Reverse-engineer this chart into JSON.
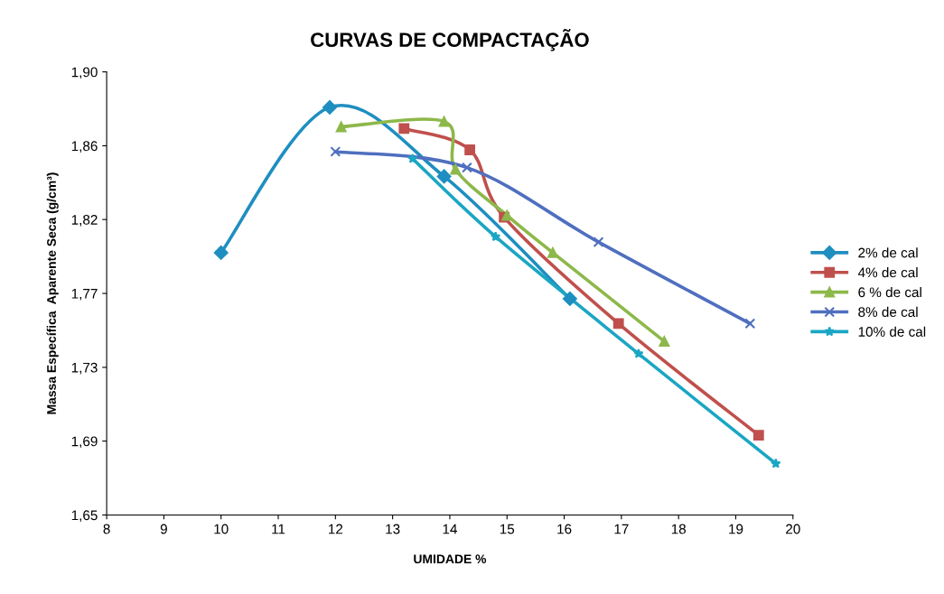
{
  "chart_data": {
    "type": "line",
    "title": "CURVAS DE COMPACTAÇÃO",
    "xlabel": "UMIDADE %",
    "ylabel": "Massa Específica  Aparente Seca (g/cm³)",
    "xlim": [
      8,
      20
    ],
    "xticks": [
      8,
      9,
      10,
      11,
      12,
      13,
      14,
      15,
      16,
      17,
      18,
      19,
      20
    ],
    "ylim": [
      1.65,
      1.9
    ],
    "yticks": [
      {
        "value": 1.65,
        "label": "1,65"
      },
      {
        "value": 1.6917,
        "label": "1,69"
      },
      {
        "value": 1.7333,
        "label": "1,73"
      },
      {
        "value": 1.775,
        "label": "1,77"
      },
      {
        "value": 1.8167,
        "label": "1,82"
      },
      {
        "value": 1.8583,
        "label": "1,86"
      },
      {
        "value": 1.9,
        "label": "1,90"
      }
    ],
    "grid": false,
    "legend": "right",
    "line_style": "solid",
    "series": [
      {
        "name": "2% de cal",
        "color": "#1f8ec0",
        "marker": "diamond",
        "x": [
          10,
          11.9,
          13.9,
          16.1
        ],
        "values": [
          1.798,
          1.88,
          1.841,
          1.772
        ]
      },
      {
        "name": "4% de cal",
        "color": "#c0504d",
        "marker": "square",
        "x": [
          13.2,
          14.35,
          14.95,
          16.95,
          19.4
        ],
        "values": [
          1.868,
          1.856,
          1.818,
          1.758,
          1.695
        ]
      },
      {
        "name": "6 % de cal",
        "color": "#8db84a",
        "marker": "triangle",
        "x": [
          12.1,
          13.9,
          14.1,
          15.0,
          15.8,
          17.75
        ],
        "values": [
          1.869,
          1.872,
          1.845,
          1.819,
          1.798,
          1.748
        ]
      },
      {
        "name": "8% de cal",
        "color": "#4f6fbf",
        "marker": "cross",
        "x": [
          12.0,
          14.3,
          16.6,
          19.25
        ],
        "values": [
          1.855,
          1.846,
          1.804,
          1.758
        ]
      },
      {
        "name": "10% de cal",
        "color": "#1ba6c4",
        "marker": "star",
        "x": [
          13.35,
          14.8,
          17.3,
          19.7
        ],
        "values": [
          1.851,
          1.807,
          1.741,
          1.679
        ]
      }
    ]
  }
}
